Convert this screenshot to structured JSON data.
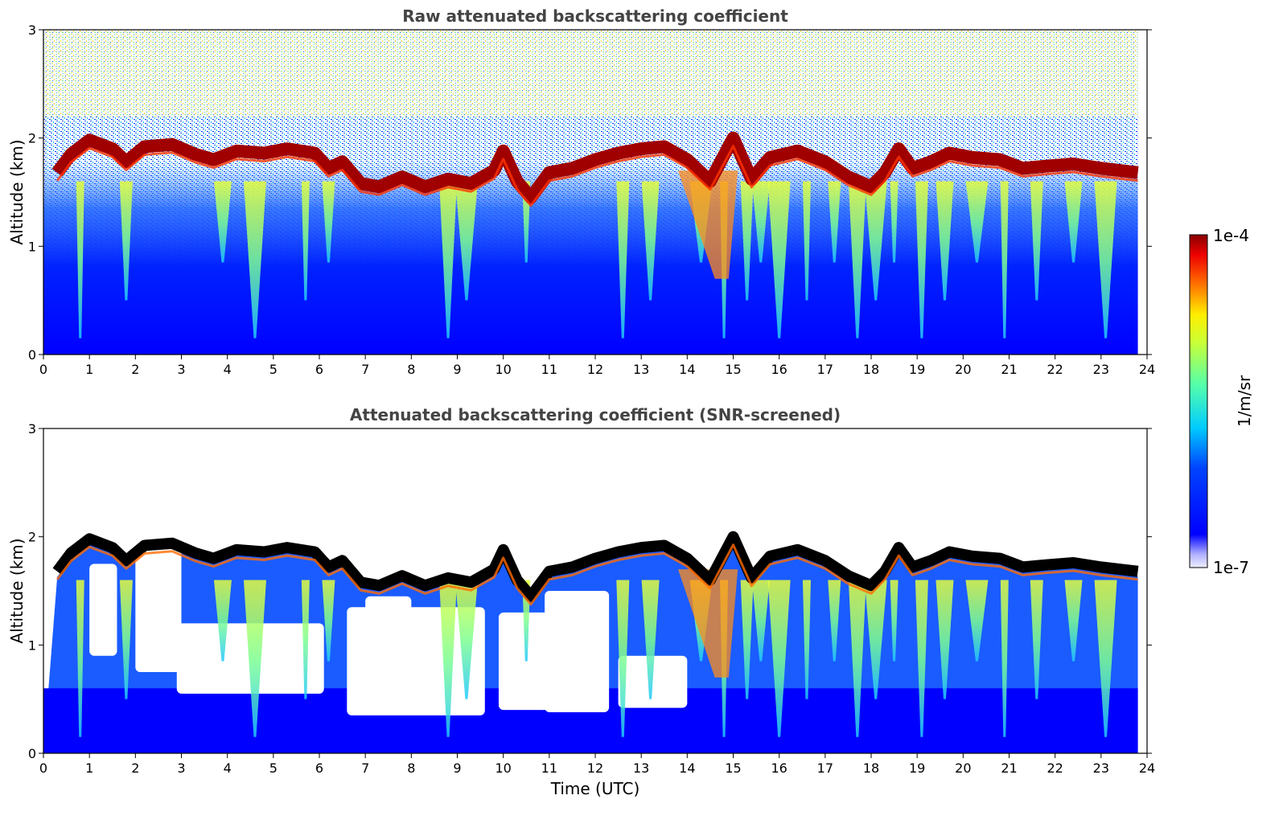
{
  "chart_data": [
    {
      "type": "heatmap",
      "title": "Raw attenuated backscattering coefficient",
      "xlabel": "",
      "ylabel": "Altitude (km)",
      "x_ticks": [
        "0",
        "1",
        "2",
        "3",
        "4",
        "5",
        "6",
        "7",
        "8",
        "9",
        "10",
        "11",
        "12",
        "13",
        "14",
        "15",
        "16",
        "17",
        "18",
        "19",
        "20",
        "21",
        "22",
        "23",
        "24"
      ],
      "y_ticks": [
        "0",
        "1",
        "2",
        "3"
      ],
      "xlim": [
        0,
        24
      ],
      "ylim": [
        0,
        3
      ],
      "data_extent_x": [
        0,
        23.8
      ],
      "screened": false,
      "top_layer_km": [
        [
          0.3,
          1.68
        ],
        [
          0.6,
          1.85
        ],
        [
          1.0,
          1.98
        ],
        [
          1.5,
          1.9
        ],
        [
          1.8,
          1.78
        ],
        [
          2.2,
          1.92
        ],
        [
          2.8,
          1.94
        ],
        [
          3.3,
          1.85
        ],
        [
          3.7,
          1.8
        ],
        [
          4.2,
          1.88
        ],
        [
          4.8,
          1.86
        ],
        [
          5.3,
          1.9
        ],
        [
          5.9,
          1.86
        ],
        [
          6.2,
          1.72
        ],
        [
          6.5,
          1.78
        ],
        [
          6.9,
          1.58
        ],
        [
          7.3,
          1.55
        ],
        [
          7.8,
          1.64
        ],
        [
          8.3,
          1.55
        ],
        [
          8.8,
          1.62
        ],
        [
          9.3,
          1.58
        ],
        [
          9.8,
          1.7
        ],
        [
          10.0,
          1.88
        ],
        [
          10.3,
          1.6
        ],
        [
          10.6,
          1.45
        ],
        [
          11.0,
          1.68
        ],
        [
          11.5,
          1.72
        ],
        [
          12.0,
          1.8
        ],
        [
          12.5,
          1.86
        ],
        [
          13.0,
          1.9
        ],
        [
          13.5,
          1.92
        ],
        [
          14.0,
          1.8
        ],
        [
          14.5,
          1.6
        ],
        [
          15.0,
          2.0
        ],
        [
          15.4,
          1.62
        ],
        [
          15.8,
          1.82
        ],
        [
          16.4,
          1.88
        ],
        [
          17.0,
          1.78
        ],
        [
          17.5,
          1.64
        ],
        [
          18.0,
          1.55
        ],
        [
          18.3,
          1.68
        ],
        [
          18.6,
          1.9
        ],
        [
          18.9,
          1.72
        ],
        [
          19.3,
          1.78
        ],
        [
          19.7,
          1.86
        ],
        [
          20.2,
          1.82
        ],
        [
          20.8,
          1.8
        ],
        [
          21.3,
          1.72
        ],
        [
          21.8,
          1.74
        ],
        [
          22.4,
          1.76
        ],
        [
          23.0,
          1.72
        ],
        [
          23.8,
          1.68
        ]
      ]
    },
    {
      "type": "heatmap",
      "title": "Attenuated backscattering coefficient (SNR-screened)",
      "xlabel": "Time (UTC)",
      "ylabel": "Altitude (km)",
      "x_ticks": [
        "0",
        "1",
        "2",
        "3",
        "4",
        "5",
        "6",
        "7",
        "8",
        "9",
        "10",
        "11",
        "12",
        "13",
        "14",
        "15",
        "16",
        "17",
        "18",
        "19",
        "20",
        "21",
        "22",
        "23",
        "24"
      ],
      "y_ticks": [
        "0",
        "1",
        "2",
        "3"
      ],
      "xlim": [
        0,
        24
      ],
      "ylim": [
        0,
        3
      ],
      "data_extent_x": [
        0,
        23.8
      ],
      "screened": true,
      "top_layer_km": [
        [
          0.3,
          1.68
        ],
        [
          0.6,
          1.85
        ],
        [
          1.0,
          1.98
        ],
        [
          1.5,
          1.9
        ],
        [
          1.8,
          1.78
        ],
        [
          2.2,
          1.92
        ],
        [
          2.8,
          1.94
        ],
        [
          3.3,
          1.85
        ],
        [
          3.7,
          1.8
        ],
        [
          4.2,
          1.88
        ],
        [
          4.8,
          1.86
        ],
        [
          5.3,
          1.9
        ],
        [
          5.9,
          1.86
        ],
        [
          6.2,
          1.72
        ],
        [
          6.5,
          1.78
        ],
        [
          6.9,
          1.58
        ],
        [
          7.3,
          1.55
        ],
        [
          7.8,
          1.64
        ],
        [
          8.3,
          1.55
        ],
        [
          8.8,
          1.62
        ],
        [
          9.3,
          1.58
        ],
        [
          9.8,
          1.7
        ],
        [
          10.0,
          1.88
        ],
        [
          10.3,
          1.6
        ],
        [
          10.6,
          1.45
        ],
        [
          11.0,
          1.68
        ],
        [
          11.5,
          1.72
        ],
        [
          12.0,
          1.8
        ],
        [
          12.5,
          1.86
        ],
        [
          13.0,
          1.9
        ],
        [
          13.5,
          1.92
        ],
        [
          14.0,
          1.8
        ],
        [
          14.5,
          1.6
        ],
        [
          15.0,
          2.0
        ],
        [
          15.4,
          1.62
        ],
        [
          15.8,
          1.82
        ],
        [
          16.4,
          1.88
        ],
        [
          17.0,
          1.78
        ],
        [
          17.5,
          1.64
        ],
        [
          18.0,
          1.55
        ],
        [
          18.3,
          1.68
        ],
        [
          18.6,
          1.9
        ],
        [
          18.9,
          1.72
        ],
        [
          19.3,
          1.78
        ],
        [
          19.7,
          1.86
        ],
        [
          20.2,
          1.82
        ],
        [
          20.8,
          1.8
        ],
        [
          21.3,
          1.72
        ],
        [
          21.8,
          1.74
        ],
        [
          22.4,
          1.76
        ],
        [
          23.0,
          1.72
        ],
        [
          23.8,
          1.68
        ]
      ],
      "clear_regions": [
        {
          "x": [
            1.0,
            1.6
          ],
          "y": [
            0.9,
            1.75
          ]
        },
        {
          "x": [
            2.0,
            3.0
          ],
          "y": [
            0.75,
            1.9
          ]
        },
        {
          "x": [
            2.9,
            6.1
          ],
          "y": [
            0.55,
            1.2
          ]
        },
        {
          "x": [
            6.6,
            9.6
          ],
          "y": [
            0.35,
            1.35
          ]
        },
        {
          "x": [
            7.0,
            8.0
          ],
          "y": [
            0.6,
            1.45
          ]
        },
        {
          "x": [
            9.9,
            11.2
          ],
          "y": [
            0.4,
            1.3
          ]
        },
        {
          "x": [
            10.9,
            12.3
          ],
          "y": [
            0.38,
            1.5
          ]
        },
        {
          "x": [
            12.5,
            14.0
          ],
          "y": [
            0.42,
            0.9
          ]
        }
      ]
    }
  ],
  "colorbar": {
    "label": "1/m/sr",
    "max_label": "1e-4",
    "min_label": "1e-7",
    "scale": "log",
    "range": [
      1e-07,
      0.0001
    ],
    "colormap": [
      "#e8e8f8",
      "#0000ff",
      "#00ccff",
      "#7fff7f",
      "#ffff00",
      "#ff6600",
      "#ff0000",
      "#800000"
    ]
  }
}
